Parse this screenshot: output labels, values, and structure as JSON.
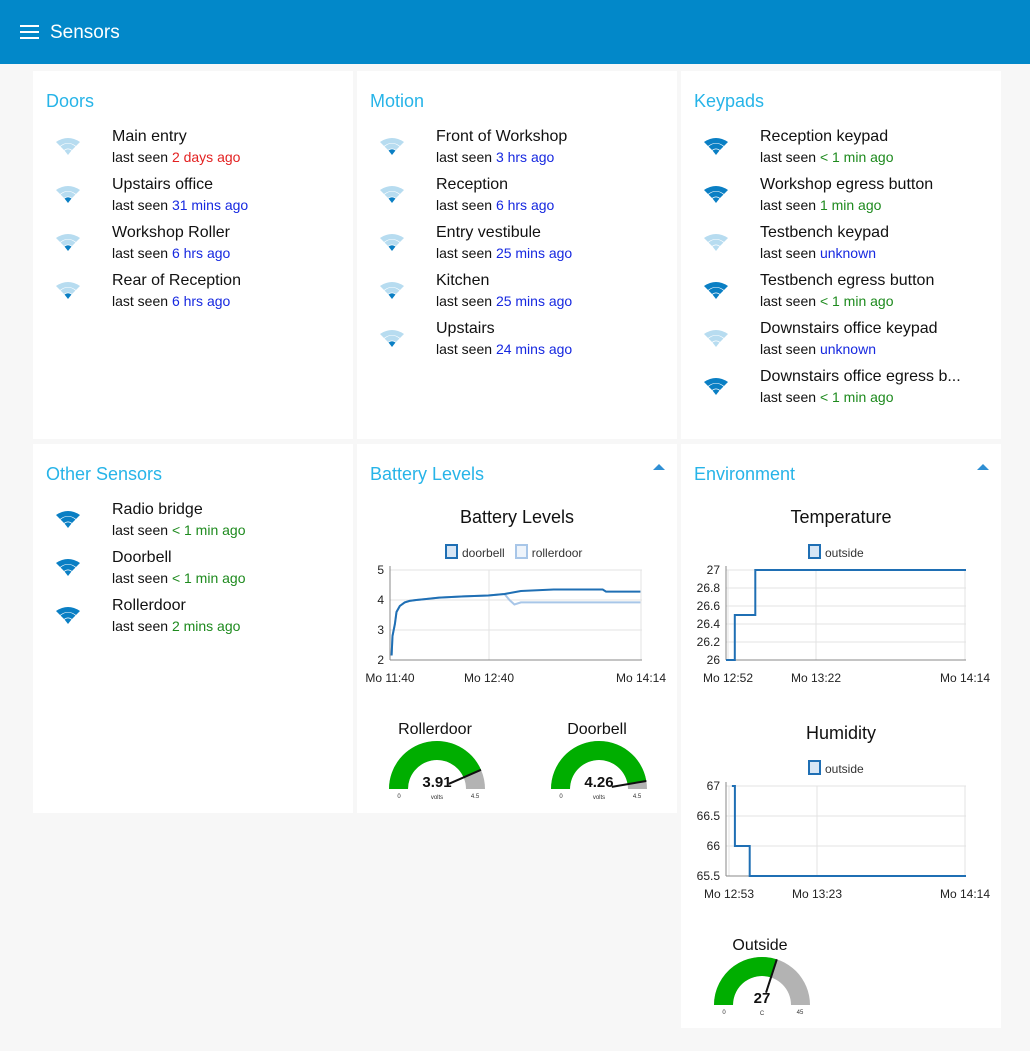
{
  "header": {
    "title": "Sensors"
  },
  "colors": {
    "header": "#0288c9",
    "accent": "#27b4e8",
    "recent": "#1d8a1d",
    "hours": "#1628e0",
    "days": "#e32121",
    "wifi_strong": "#0a7fc4",
    "wifi_weak": "#b7dcf0",
    "gauge_fill": "#00ae00",
    "gauge_bg": "#b3b3b3"
  },
  "doors": {
    "title": "Doors",
    "items": [
      {
        "name": "Main entry",
        "prefix": "last seen",
        "ago": "2 days ago",
        "status": "days",
        "signal": "weak"
      },
      {
        "name": "Upstairs office",
        "prefix": "last seen",
        "ago": "31 mins ago",
        "status": "hours",
        "signal": "strong"
      },
      {
        "name": "Workshop Roller",
        "prefix": "last seen",
        "ago": "6 hrs ago",
        "status": "hours",
        "signal": "strong"
      },
      {
        "name": "Rear of Reception",
        "prefix": "last seen",
        "ago": "6 hrs ago",
        "status": "hours",
        "signal": "strong"
      }
    ]
  },
  "motion": {
    "title": "Motion",
    "items": [
      {
        "name": "Front of Workshop",
        "prefix": "last seen",
        "ago": "3 hrs ago",
        "status": "hours",
        "signal": "strong"
      },
      {
        "name": "Reception",
        "prefix": "last seen",
        "ago": "6 hrs ago",
        "status": "hours",
        "signal": "strong"
      },
      {
        "name": "Entry vestibule",
        "prefix": "last seen",
        "ago": "25 mins ago",
        "status": "hours",
        "signal": "strong"
      },
      {
        "name": "Kitchen",
        "prefix": "last seen",
        "ago": "25 mins ago",
        "status": "hours",
        "signal": "strong"
      },
      {
        "name": "Upstairs",
        "prefix": "last seen",
        "ago": "24 mins ago",
        "status": "hours",
        "signal": "strong"
      }
    ]
  },
  "keypads": {
    "title": "Keypads",
    "items": [
      {
        "name": "Reception keypad",
        "prefix": "last seen",
        "ago": "< 1 min ago",
        "status": "recent",
        "signal": "full"
      },
      {
        "name": "Workshop egress button",
        "prefix": "last seen",
        "ago": "1 min ago",
        "status": "recent",
        "signal": "full"
      },
      {
        "name": "Testbench keypad",
        "prefix": "last seen",
        "ago": "unknown",
        "status": "hours",
        "signal": "weak"
      },
      {
        "name": "Testbench egress button",
        "prefix": "last seen",
        "ago": "< 1 min ago",
        "status": "recent",
        "signal": "full"
      },
      {
        "name": "Downstairs office keypad",
        "prefix": "last seen",
        "ago": "unknown",
        "status": "hours",
        "signal": "weak"
      },
      {
        "name": "Downstairs office egress b...",
        "prefix": "last seen",
        "ago": "< 1 min ago",
        "status": "recent",
        "signal": "full"
      }
    ]
  },
  "other": {
    "title": "Other Sensors",
    "items": [
      {
        "name": "Radio bridge",
        "prefix": "last seen",
        "ago": "< 1 min ago",
        "status": "recent",
        "signal": "full"
      },
      {
        "name": "Doorbell",
        "prefix": "last seen",
        "ago": "< 1 min ago",
        "status": "recent",
        "signal": "full"
      },
      {
        "name": "Rollerdoor",
        "prefix": "last seen",
        "ago": "2 mins ago",
        "status": "recent",
        "signal": "full"
      }
    ]
  },
  "battery": {
    "group_title": "Battery Levels",
    "gauges": [
      {
        "title": "Rollerdoor",
        "value": 3.91,
        "value_label": "3.91",
        "min": 0,
        "max": 4.5,
        "min_label": "0",
        "max_label": "4.5",
        "units": "volts"
      },
      {
        "title": "Doorbell",
        "value": 4.26,
        "value_label": "4.26",
        "min": 0,
        "max": 4.5,
        "min_label": "0",
        "max_label": "4.5",
        "units": "volts"
      }
    ]
  },
  "environment": {
    "group_title": "Environment",
    "gauge": {
      "title": "Outside",
      "value": 27,
      "value_label": "27",
      "min": 0,
      "max": 45,
      "min_label": "0",
      "max_label": "45",
      "units": "C"
    }
  },
  "chart_data": [
    {
      "type": "line",
      "title": "Battery Levels",
      "xlabel": "",
      "ylabel": "",
      "x_ticks": [
        "Mo 11:40",
        "Mo 12:40",
        "Mo 14:14"
      ],
      "x_range_minutes": [
        700,
        854
      ],
      "y_ticks": [
        "2",
        "3",
        "4",
        "5"
      ],
      "ylim": [
        2,
        5
      ],
      "legend_position": "top-center",
      "grid": true,
      "series": [
        {
          "name": "doorbell",
          "color": "#1f6fb4",
          "x_minutes": [
            701,
            701.5,
            703,
            704,
            706,
            709,
            712,
            716,
            720,
            730,
            745,
            760,
            770,
            775,
            780,
            800,
            820,
            830,
            832,
            840,
            853
          ],
          "values": [
            2.15,
            2.8,
            3.2,
            3.6,
            3.8,
            3.92,
            3.97,
            4.0,
            4.02,
            4.08,
            4.12,
            4.15,
            4.2,
            4.25,
            4.3,
            4.35,
            4.35,
            4.35,
            4.28,
            4.28,
            4.28
          ]
        },
        {
          "name": "rollerdoor",
          "color": "#a8c6e8",
          "x_minutes": [
            701,
            701.5,
            703,
            704,
            706,
            709,
            712,
            716,
            720,
            730,
            745,
            760,
            770,
            773,
            776,
            780,
            800,
            820,
            853
          ],
          "values": [
            2.15,
            2.8,
            3.2,
            3.6,
            3.8,
            3.92,
            3.97,
            4.0,
            4.02,
            4.08,
            4.12,
            4.15,
            4.2,
            4.0,
            3.85,
            3.92,
            3.92,
            3.92,
            3.92
          ]
        }
      ]
    },
    {
      "type": "line",
      "title": "Temperature",
      "xlabel": "",
      "ylabel": "",
      "x_ticks": [
        "Mo 12:52",
        "Mo 13:22",
        "Mo 14:14"
      ],
      "x_range_minutes": [
        772,
        854
      ],
      "y_ticks": [
        "26",
        "26.2",
        "26.4",
        "26.6",
        "26.8",
        "27"
      ],
      "ylim": [
        26,
        27
      ],
      "legend_position": "top-center",
      "grid": true,
      "series": [
        {
          "name": "outside",
          "color": "#1f6fb4",
          "x_minutes": [
            772,
            775,
            775,
            782,
            782,
            854
          ],
          "values": [
            26,
            26,
            26.5,
            26.5,
            27,
            27
          ]
        }
      ]
    },
    {
      "type": "line",
      "title": "Humidity",
      "xlabel": "",
      "ylabel": "",
      "x_ticks": [
        "Mo 12:53",
        "Mo 13:23",
        "Mo 14:14"
      ],
      "x_range_minutes": [
        773,
        854
      ],
      "y_ticks": [
        "65.5",
        "66",
        "66.5",
        "67"
      ],
      "ylim": [
        65.5,
        67
      ],
      "legend_position": "top-center",
      "grid": true,
      "series": [
        {
          "name": "outside",
          "color": "#1f6fb4",
          "x_minutes": [
            775,
            776,
            776,
            781,
            781,
            854
          ],
          "values": [
            67,
            67,
            66,
            66,
            65.5,
            65.5
          ]
        }
      ]
    }
  ]
}
